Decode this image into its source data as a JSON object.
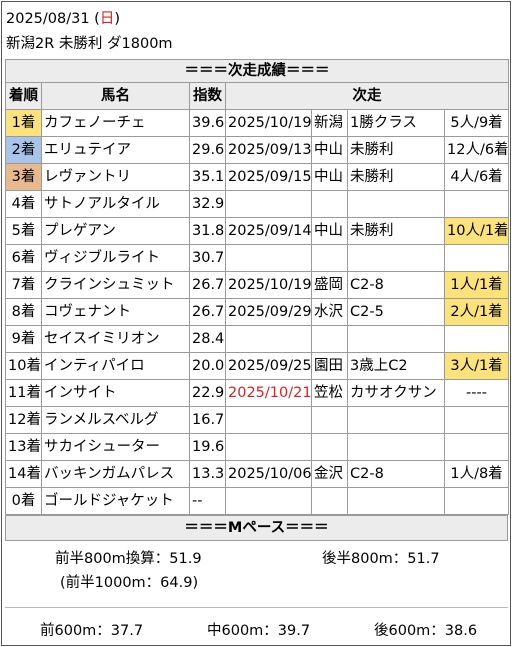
{
  "header": {
    "date": "2025/08/31",
    "weekday_open": " (",
    "weekday": "日",
    "weekday_close": ")",
    "race": "新潟2R 未勝利 ダ1800m"
  },
  "section_title": "＝＝＝次走成績＝＝＝",
  "columns": {
    "rank": "着順",
    "horse": "馬名",
    "index": "指数",
    "next": "次走"
  },
  "rows": [
    {
      "rank": "1着",
      "horse": "カフェノーチェ",
      "index": "39.6",
      "date": "2025/10/19",
      "venue": "新潟",
      "cls": "1勝クラス",
      "result": "5人/9着"
    },
    {
      "rank": "2着",
      "horse": "エリュテイア",
      "index": "29.6",
      "date": "2025/09/13",
      "venue": "中山",
      "cls": "未勝利",
      "result": "12人/6着"
    },
    {
      "rank": "3着",
      "horse": "レヴァントリ",
      "index": "35.1",
      "date": "2025/09/15",
      "venue": "中山",
      "cls": "未勝利",
      "result": "4人/6着"
    },
    {
      "rank": "4着",
      "horse": "サトノアルタイル",
      "index": "32.9",
      "date": "",
      "venue": "",
      "cls": "",
      "result": ""
    },
    {
      "rank": "5着",
      "horse": "プレゲアン",
      "index": "31.8",
      "date": "2025/09/14",
      "venue": "中山",
      "cls": "未勝利",
      "result": "10人/1着"
    },
    {
      "rank": "6着",
      "horse": "ヴィジブルライト",
      "index": "30.7",
      "date": "",
      "venue": "",
      "cls": "",
      "result": ""
    },
    {
      "rank": "7着",
      "horse": "クラインシュミット",
      "index": "26.7",
      "date": "2025/10/19",
      "venue": "盛岡",
      "cls": "C2-8",
      "result": "1人/1着"
    },
    {
      "rank": "8着",
      "horse": "コヴェナント",
      "index": "26.7",
      "date": "2025/09/29",
      "venue": "水沢",
      "cls": "C2-5",
      "result": "2人/1着"
    },
    {
      "rank": "9着",
      "horse": "セイスイミリオン",
      "index": "28.4",
      "date": "",
      "venue": "",
      "cls": "",
      "result": ""
    },
    {
      "rank": "10着",
      "horse": "インティパイロ",
      "index": "20.0",
      "date": "2025/09/25",
      "venue": "園田",
      "cls": "3歳上C2",
      "result": "3人/1着"
    },
    {
      "rank": "11着",
      "horse": "インサイト",
      "index": "22.9",
      "date": "2025/10/21",
      "venue": "笠松",
      "cls": "カサオクサン",
      "result": "----"
    },
    {
      "rank": "12着",
      "horse": "ランメルスベルグ",
      "index": "16.7",
      "date": "",
      "venue": "",
      "cls": "",
      "result": ""
    },
    {
      "rank": "13着",
      "horse": "サカイシューター",
      "index": "19.6",
      "date": "",
      "venue": "",
      "cls": "",
      "result": ""
    },
    {
      "rank": "14着",
      "horse": "バッキンガムパレス",
      "index": "13.3",
      "date": "2025/10/06",
      "venue": "金沢",
      "cls": "C2-8",
      "result": "1人/8着"
    },
    {
      "rank": "0着",
      "horse": "ゴールドジャケット",
      "index": "--",
      "date": "",
      "venue": "",
      "cls": "",
      "result": ""
    }
  ],
  "pace": {
    "title": "＝＝＝Mペース＝＝＝",
    "first800": "前半800m換算：51.9",
    "last800": "後半800m：51.7",
    "first1000": "(前半1000m：64.9)",
    "front600": "前600m：37.7",
    "mid600": "中600m：39.7",
    "back600": "後600m：38.6"
  },
  "colors": {
    "gold": "#fbe27a",
    "silver": "#a9c4ea",
    "bronze": "#e8b98e",
    "highlight": "#fbe27a",
    "red": "#e02020",
    "header_bg": "#ececec"
  }
}
